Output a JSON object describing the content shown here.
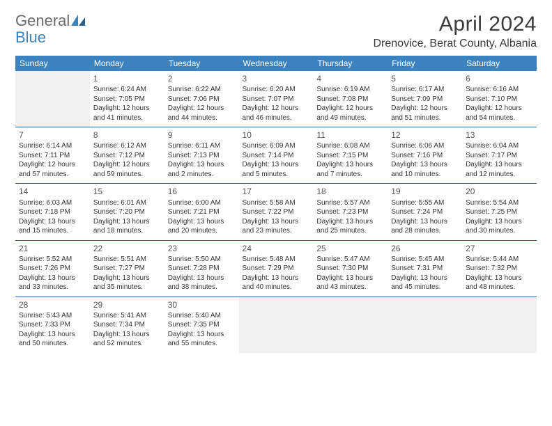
{
  "brand": {
    "name1": "General",
    "name2": "Blue",
    "text_color": "#6b6b6b",
    "accent_color": "#3b83c0"
  },
  "title": "April 2024",
  "location": "Drenovice, Berat County, Albania",
  "header_bg": "#3b83c0",
  "header_text_color": "#ffffff",
  "row_border_color": "#2a5d88",
  "empty_bg": "#f0f0f0",
  "days_of_week": [
    "Sunday",
    "Monday",
    "Tuesday",
    "Wednesday",
    "Thursday",
    "Friday",
    "Saturday"
  ],
  "weeks": [
    [
      {
        "empty": true
      },
      {
        "day": "1",
        "sunrise": "Sunrise: 6:24 AM",
        "sunset": "Sunset: 7:05 PM",
        "dl1": "Daylight: 12 hours",
        "dl2": "and 41 minutes."
      },
      {
        "day": "2",
        "sunrise": "Sunrise: 6:22 AM",
        "sunset": "Sunset: 7:06 PM",
        "dl1": "Daylight: 12 hours",
        "dl2": "and 44 minutes."
      },
      {
        "day": "3",
        "sunrise": "Sunrise: 6:20 AM",
        "sunset": "Sunset: 7:07 PM",
        "dl1": "Daylight: 12 hours",
        "dl2": "and 46 minutes."
      },
      {
        "day": "4",
        "sunrise": "Sunrise: 6:19 AM",
        "sunset": "Sunset: 7:08 PM",
        "dl1": "Daylight: 12 hours",
        "dl2": "and 49 minutes."
      },
      {
        "day": "5",
        "sunrise": "Sunrise: 6:17 AM",
        "sunset": "Sunset: 7:09 PM",
        "dl1": "Daylight: 12 hours",
        "dl2": "and 51 minutes."
      },
      {
        "day": "6",
        "sunrise": "Sunrise: 6:16 AM",
        "sunset": "Sunset: 7:10 PM",
        "dl1": "Daylight: 12 hours",
        "dl2": "and 54 minutes."
      }
    ],
    [
      {
        "day": "7",
        "sunrise": "Sunrise: 6:14 AM",
        "sunset": "Sunset: 7:11 PM",
        "dl1": "Daylight: 12 hours",
        "dl2": "and 57 minutes."
      },
      {
        "day": "8",
        "sunrise": "Sunrise: 6:12 AM",
        "sunset": "Sunset: 7:12 PM",
        "dl1": "Daylight: 12 hours",
        "dl2": "and 59 minutes."
      },
      {
        "day": "9",
        "sunrise": "Sunrise: 6:11 AM",
        "sunset": "Sunset: 7:13 PM",
        "dl1": "Daylight: 13 hours",
        "dl2": "and 2 minutes."
      },
      {
        "day": "10",
        "sunrise": "Sunrise: 6:09 AM",
        "sunset": "Sunset: 7:14 PM",
        "dl1": "Daylight: 13 hours",
        "dl2": "and 5 minutes."
      },
      {
        "day": "11",
        "sunrise": "Sunrise: 6:08 AM",
        "sunset": "Sunset: 7:15 PM",
        "dl1": "Daylight: 13 hours",
        "dl2": "and 7 minutes."
      },
      {
        "day": "12",
        "sunrise": "Sunrise: 6:06 AM",
        "sunset": "Sunset: 7:16 PM",
        "dl1": "Daylight: 13 hours",
        "dl2": "and 10 minutes."
      },
      {
        "day": "13",
        "sunrise": "Sunrise: 6:04 AM",
        "sunset": "Sunset: 7:17 PM",
        "dl1": "Daylight: 13 hours",
        "dl2": "and 12 minutes."
      }
    ],
    [
      {
        "day": "14",
        "sunrise": "Sunrise: 6:03 AM",
        "sunset": "Sunset: 7:18 PM",
        "dl1": "Daylight: 13 hours",
        "dl2": "and 15 minutes."
      },
      {
        "day": "15",
        "sunrise": "Sunrise: 6:01 AM",
        "sunset": "Sunset: 7:20 PM",
        "dl1": "Daylight: 13 hours",
        "dl2": "and 18 minutes."
      },
      {
        "day": "16",
        "sunrise": "Sunrise: 6:00 AM",
        "sunset": "Sunset: 7:21 PM",
        "dl1": "Daylight: 13 hours",
        "dl2": "and 20 minutes."
      },
      {
        "day": "17",
        "sunrise": "Sunrise: 5:58 AM",
        "sunset": "Sunset: 7:22 PM",
        "dl1": "Daylight: 13 hours",
        "dl2": "and 23 minutes."
      },
      {
        "day": "18",
        "sunrise": "Sunrise: 5:57 AM",
        "sunset": "Sunset: 7:23 PM",
        "dl1": "Daylight: 13 hours",
        "dl2": "and 25 minutes."
      },
      {
        "day": "19",
        "sunrise": "Sunrise: 5:55 AM",
        "sunset": "Sunset: 7:24 PM",
        "dl1": "Daylight: 13 hours",
        "dl2": "and 28 minutes."
      },
      {
        "day": "20",
        "sunrise": "Sunrise: 5:54 AM",
        "sunset": "Sunset: 7:25 PM",
        "dl1": "Daylight: 13 hours",
        "dl2": "and 30 minutes."
      }
    ],
    [
      {
        "day": "21",
        "sunrise": "Sunrise: 5:52 AM",
        "sunset": "Sunset: 7:26 PM",
        "dl1": "Daylight: 13 hours",
        "dl2": "and 33 minutes."
      },
      {
        "day": "22",
        "sunrise": "Sunrise: 5:51 AM",
        "sunset": "Sunset: 7:27 PM",
        "dl1": "Daylight: 13 hours",
        "dl2": "and 35 minutes."
      },
      {
        "day": "23",
        "sunrise": "Sunrise: 5:50 AM",
        "sunset": "Sunset: 7:28 PM",
        "dl1": "Daylight: 13 hours",
        "dl2": "and 38 minutes."
      },
      {
        "day": "24",
        "sunrise": "Sunrise: 5:48 AM",
        "sunset": "Sunset: 7:29 PM",
        "dl1": "Daylight: 13 hours",
        "dl2": "and 40 minutes."
      },
      {
        "day": "25",
        "sunrise": "Sunrise: 5:47 AM",
        "sunset": "Sunset: 7:30 PM",
        "dl1": "Daylight: 13 hours",
        "dl2": "and 43 minutes."
      },
      {
        "day": "26",
        "sunrise": "Sunrise: 5:45 AM",
        "sunset": "Sunset: 7:31 PM",
        "dl1": "Daylight: 13 hours",
        "dl2": "and 45 minutes."
      },
      {
        "day": "27",
        "sunrise": "Sunrise: 5:44 AM",
        "sunset": "Sunset: 7:32 PM",
        "dl1": "Daylight: 13 hours",
        "dl2": "and 48 minutes."
      }
    ],
    [
      {
        "day": "28",
        "sunrise": "Sunrise: 5:43 AM",
        "sunset": "Sunset: 7:33 PM",
        "dl1": "Daylight: 13 hours",
        "dl2": "and 50 minutes."
      },
      {
        "day": "29",
        "sunrise": "Sunrise: 5:41 AM",
        "sunset": "Sunset: 7:34 PM",
        "dl1": "Daylight: 13 hours",
        "dl2": "and 52 minutes."
      },
      {
        "day": "30",
        "sunrise": "Sunrise: 5:40 AM",
        "sunset": "Sunset: 7:35 PM",
        "dl1": "Daylight: 13 hours",
        "dl2": "and 55 minutes."
      },
      {
        "empty": true
      },
      {
        "empty": true
      },
      {
        "empty": true
      },
      {
        "empty": true
      }
    ]
  ]
}
